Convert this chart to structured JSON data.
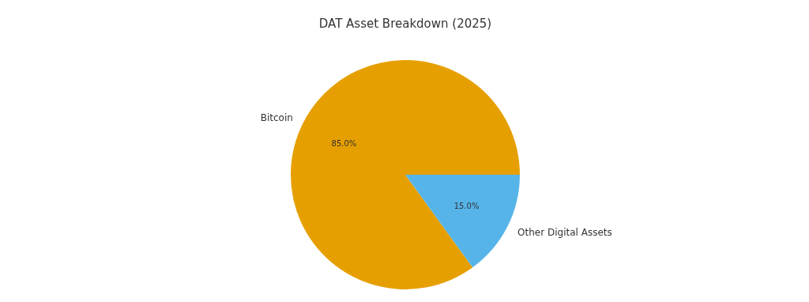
{
  "chart_data": {
    "type": "pie",
    "title": "DAT Asset Breakdown (2025)",
    "categories": [
      "Bitcoin",
      "Other Digital Assets"
    ],
    "values": [
      85,
      15
    ],
    "colors": [
      "#e69f00",
      "#56b4e9"
    ],
    "value_labels": [
      "85.0%",
      "15.0%"
    ],
    "legend": false
  }
}
